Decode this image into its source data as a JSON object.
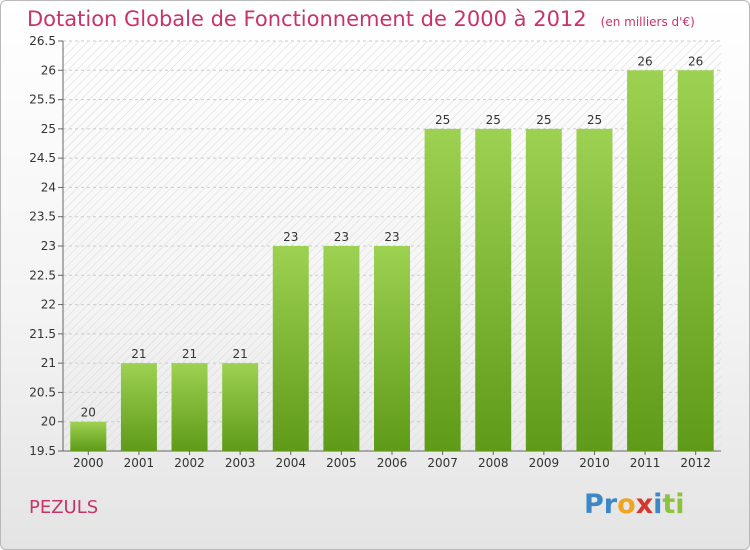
{
  "header": {
    "title": "Dotation Globale de Fonctionnement de 2000 à 2012",
    "unit": "(en milliers d'€)"
  },
  "footer": {
    "commune": "PEZULS",
    "logo_letters": [
      "P",
      "r",
      "o",
      "x",
      "i",
      "t",
      "i"
    ]
  },
  "colors": {
    "title": "#c8336c",
    "bar_top": "#9dd152",
    "bar_bottom": "#5f9a18",
    "grid": "#cccccc"
  },
  "chart_data": {
    "type": "bar",
    "title": "Dotation Globale de Fonctionnement de 2000 à 2012",
    "subtitle": "(en milliers d'€)",
    "xlabel": "",
    "ylabel": "",
    "categories": [
      "2000",
      "2001",
      "2002",
      "2003",
      "2004",
      "2005",
      "2006",
      "2007",
      "2008",
      "2009",
      "2010",
      "2011",
      "2012"
    ],
    "values": [
      20,
      21,
      21,
      21,
      23,
      23,
      23,
      25,
      25,
      25,
      25,
      26,
      26
    ],
    "data_labels": [
      "20",
      "21",
      "21",
      "21",
      "23",
      "23",
      "23",
      "25",
      "25",
      "25",
      "25",
      "26",
      "26"
    ],
    "ylim": [
      19.5,
      26.5
    ],
    "yticks": [
      "19.5",
      "20",
      "20.5",
      "21",
      "21.5",
      "22",
      "22.5",
      "23",
      "23.5",
      "24",
      "24.5",
      "25",
      "25.5",
      "26",
      "26.5"
    ],
    "grid": true
  }
}
